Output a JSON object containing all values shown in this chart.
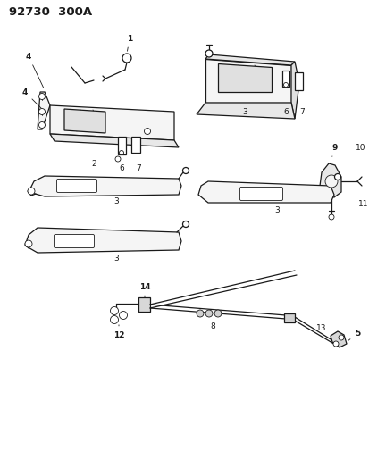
{
  "title": "92730  300A",
  "bg_color": "#ffffff",
  "line_color": "#1a1a1a",
  "title_fontsize": 9.5,
  "label_fontsize": 6.5,
  "fig_width": 4.14,
  "fig_height": 5.33,
  "dpi": 100,
  "visor_fill": "#f5f5f5",
  "mirror_fill": "#e0e0e0"
}
